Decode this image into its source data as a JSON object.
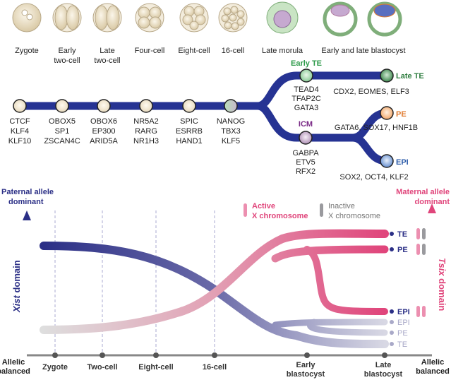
{
  "stages": [
    "Zygote",
    "Early",
    "two-cell",
    "Late",
    "two-cell",
    "Four-cell",
    "Eight-cell",
    "16-cell",
    "Late morula",
    "Early and late blastocyst"
  ],
  "factors": [
    [
      "CTCF",
      "KLF4",
      "KLF10"
    ],
    [
      "OBOX5",
      "SP1",
      "ZSCAN4C"
    ],
    [
      "OBOX6",
      "EP300",
      "ARID5A"
    ],
    [
      "NR5A2",
      "RARG",
      "NR1H3"
    ],
    [
      "SPIC",
      "ESRRB",
      "HAND1"
    ],
    [
      "NANOG",
      "TBX3",
      "KLF5"
    ]
  ],
  "branches": {
    "early_te": {
      "label": "Early TE",
      "factors": [
        "TEAD4",
        "TFAP2C",
        "GATA3"
      ],
      "color": "#2e9a4a"
    },
    "late_te": {
      "label": "Late TE",
      "factors": "CDX2, EOMES, ELF3",
      "color": "#2e7d3f"
    },
    "icm": {
      "label": "ICM",
      "factors": [
        "GABPA",
        "ETV5",
        "RFX2"
      ],
      "color": "#7a2a86"
    },
    "pe": {
      "label": "PE",
      "factors": "GATA6, SOX17, HNF1B",
      "color": "#e07a2e"
    },
    "epi": {
      "label": "EPI",
      "factors": "SOX2, OCT4, KLF2",
      "color": "#2a5aa8"
    }
  },
  "lower": {
    "left_axis_top": [
      "Paternal allele",
      "dominant"
    ],
    "right_axis_top": [
      "Maternal allele",
      "dominant"
    ],
    "left_axis_label": [
      "Xist",
      " domain"
    ],
    "right_axis_label": [
      "Tsix",
      " domain"
    ],
    "balanced_left": [
      "Allelic",
      "balanced"
    ],
    "balanced_right": [
      "Allelic",
      "balanced"
    ],
    "legend_active": [
      "Active",
      "X chromosome"
    ],
    "legend_inactive": [
      "Inactive",
      "X chromosome"
    ],
    "timepoints": [
      "Zygote",
      "Two-cell",
      "Eight-cell",
      "16-cell"
    ],
    "timepoints2": [
      [
        "Early",
        "blastocyst"
      ],
      [
        "Late",
        "blastocyst"
      ]
    ],
    "maternal_lineages": [
      "TE",
      "PE",
      "EPI"
    ],
    "paternal_lineages": [
      "EPI",
      "PE",
      "TE"
    ],
    "colors": {
      "navy": "#2b2f86",
      "pink": "#e0457b",
      "gray": "#9a9a9e"
    }
  }
}
